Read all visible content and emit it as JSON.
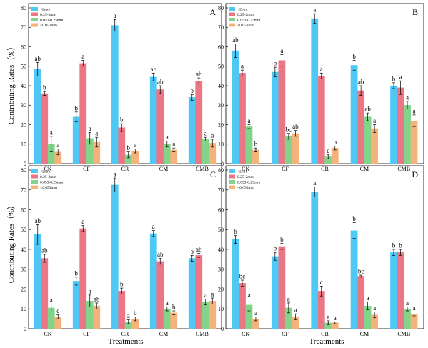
{
  "figure": {
    "ylabel": "Contributing Rates（%）",
    "xlabel": "Treatments"
  },
  "chart_data": [
    {
      "type": "bar",
      "panel": "A",
      "categories": [
        "CK",
        "CF",
        "CR",
        "CM",
        "CMB"
      ],
      "ylim": [
        0,
        80
      ],
      "yticks": [
        0,
        10,
        20,
        30,
        40,
        50,
        60,
        70,
        80
      ],
      "legend": "top-left",
      "series": [
        {
          "name": "<2mm",
          "color": "#4fc8f5",
          "values": [
            48.5,
            24,
            71,
            44.5,
            34
          ],
          "errors": [
            3.5,
            2.5,
            3,
            2,
            1.5
          ],
          "labels": [
            "ab",
            "b",
            "a",
            "ab",
            "b"
          ]
        },
        {
          "name": "0.25-2mm",
          "color": "#eb7785",
          "values": [
            36,
            51.5,
            18.5,
            38,
            42.5
          ],
          "errors": [
            1,
            1.5,
            2,
            2,
            1.5
          ],
          "labels": [
            "b",
            "a",
            "b",
            "ab",
            "ab"
          ]
        },
        {
          "name": "0.053-0.25mm",
          "color": "#82d48a",
          "values": [
            10,
            13,
            4.5,
            10,
            12.5
          ],
          "errors": [
            4,
            3,
            1.5,
            1.5,
            1
          ],
          "labels": [
            "a",
            "a",
            "b",
            "a",
            "a"
          ]
        },
        {
          "name": "<0.053mm",
          "color": "#f5b37c",
          "values": [
            6,
            11,
            6.5,
            7,
            10.5
          ],
          "errors": [
            1.5,
            2.5,
            1,
            1,
            2
          ],
          "labels": [
            "a",
            "a",
            "a",
            "a",
            "a"
          ]
        }
      ]
    },
    {
      "type": "bar",
      "panel": "B",
      "categories": [
        "CK",
        "CF",
        "CR",
        "CM",
        "CMB"
      ],
      "ylim": [
        0,
        80
      ],
      "yticks": [
        0,
        10,
        20,
        30,
        40,
        50,
        60,
        70,
        80
      ],
      "legend": "top-left",
      "series": [
        {
          "name": "<2mm",
          "color": "#4fc8f5",
          "values": [
            58,
            47,
            74.5,
            50.5,
            40
          ],
          "errors": [
            3.5,
            2.5,
            2.5,
            2.5,
            1.5
          ],
          "labels": [
            "ab",
            "b",
            "a",
            "b",
            "b"
          ]
        },
        {
          "name": "0.25-2mm",
          "color": "#eb7785",
          "values": [
            46.5,
            53,
            45,
            37.5,
            39
          ],
          "errors": [
            1.5,
            3,
            1.5,
            2.5,
            3.5
          ],
          "labels": [
            "a",
            "a",
            "a",
            "ab",
            "a"
          ]
        },
        {
          "name": "0.053-0.25mm",
          "color": "#82d48a",
          "values": [
            19,
            14,
            3.5,
            24,
            30
          ],
          "errors": [
            1,
            1.5,
            1,
            2,
            2
          ],
          "labels": [
            "a",
            "bc",
            "c",
            "ab",
            "a"
          ]
        },
        {
          "name": "<0.053mm",
          "color": "#f5b37c",
          "values": [
            7,
            15.5,
            8,
            18,
            22
          ],
          "errors": [
            1,
            1.5,
            1,
            2,
            3
          ],
          "labels": [
            "b",
            "ab",
            "b",
            "a",
            "a"
          ]
        }
      ]
    },
    {
      "type": "bar",
      "panel": "C",
      "categories": [
        "CK",
        "CF",
        "CR",
        "CM",
        "CMB"
      ],
      "ylim": [
        0,
        80
      ],
      "yticks": [
        0,
        10,
        20,
        30,
        40,
        50,
        60,
        70,
        80
      ],
      "legend": "top-left",
      "series": [
        {
          "name": "<2mm",
          "color": "#4fc8f5",
          "values": [
            47.5,
            24,
            72.5,
            48,
            35.5
          ],
          "errors": [
            5,
            2,
            3.5,
            1.5,
            1.5
          ],
          "labels": [
            "ab",
            "b",
            "a",
            "a",
            "b"
          ]
        },
        {
          "name": "0.25-2mm",
          "color": "#eb7785",
          "values": [
            35.5,
            50.5,
            19,
            34,
            37
          ],
          "errors": [
            2,
            1.5,
            1.5,
            1.5,
            1
          ],
          "labels": [
            "ab",
            "a",
            "b",
            "ab",
            "ab"
          ]
        },
        {
          "name": "0.053-0.25mm",
          "color": "#82d48a",
          "values": [
            10.5,
            14,
            3.5,
            10,
            13.5
          ],
          "errors": [
            2,
            3,
            1,
            1,
            1.5
          ],
          "labels": [
            "a",
            "a",
            "a",
            "a",
            "a"
          ]
        },
        {
          "name": "<0.053mm",
          "color": "#f5b37c",
          "values": [
            6,
            11.5,
            5,
            8,
            14
          ],
          "errors": [
            1,
            1.5,
            1,
            1,
            1.5
          ],
          "labels": [
            "c",
            "ab",
            "b",
            "b",
            "a"
          ]
        }
      ]
    },
    {
      "type": "bar",
      "panel": "D",
      "categories": [
        "CK",
        "CF",
        "CR",
        "CM",
        "CMB"
      ],
      "ylim": [
        0,
        80
      ],
      "yticks": [
        0,
        10,
        20,
        30,
        40,
        50,
        60,
        70,
        80
      ],
      "legend": "top-left",
      "series": [
        {
          "name": "<2mm",
          "color": "#4fc8f5",
          "values": [
            45,
            36.5,
            69,
            49.5,
            38.5
          ],
          "errors": [
            2,
            2,
            2.5,
            4,
            1.5
          ],
          "labels": [
            "b",
            "b",
            "a",
            "b",
            "b"
          ]
        },
        {
          "name": "0.25-2mm",
          "color": "#eb7785",
          "values": [
            23,
            41.5,
            19,
            26.5,
            38.5
          ],
          "errors": [
            1.5,
            1.5,
            2.5,
            0.5,
            1.5
          ],
          "labels": [
            "bc",
            "b",
            "c",
            "bc",
            "b"
          ]
        },
        {
          "name": "0.053-0.25mm",
          "color": "#82d48a",
          "values": [
            12,
            10.5,
            3,
            11.5,
            10
          ],
          "errors": [
            3,
            2.5,
            1,
            2,
            1
          ],
          "labels": [
            "a",
            "a",
            "a",
            "a",
            "a"
          ]
        },
        {
          "name": "<0.053mm",
          "color": "#f5b37c",
          "values": [
            5,
            6,
            3,
            7,
            7.5
          ],
          "errors": [
            1,
            1.5,
            0.5,
            1.5,
            1
          ],
          "labels": [
            "a",
            "a",
            "a",
            "a",
            "a"
          ]
        }
      ]
    }
  ]
}
